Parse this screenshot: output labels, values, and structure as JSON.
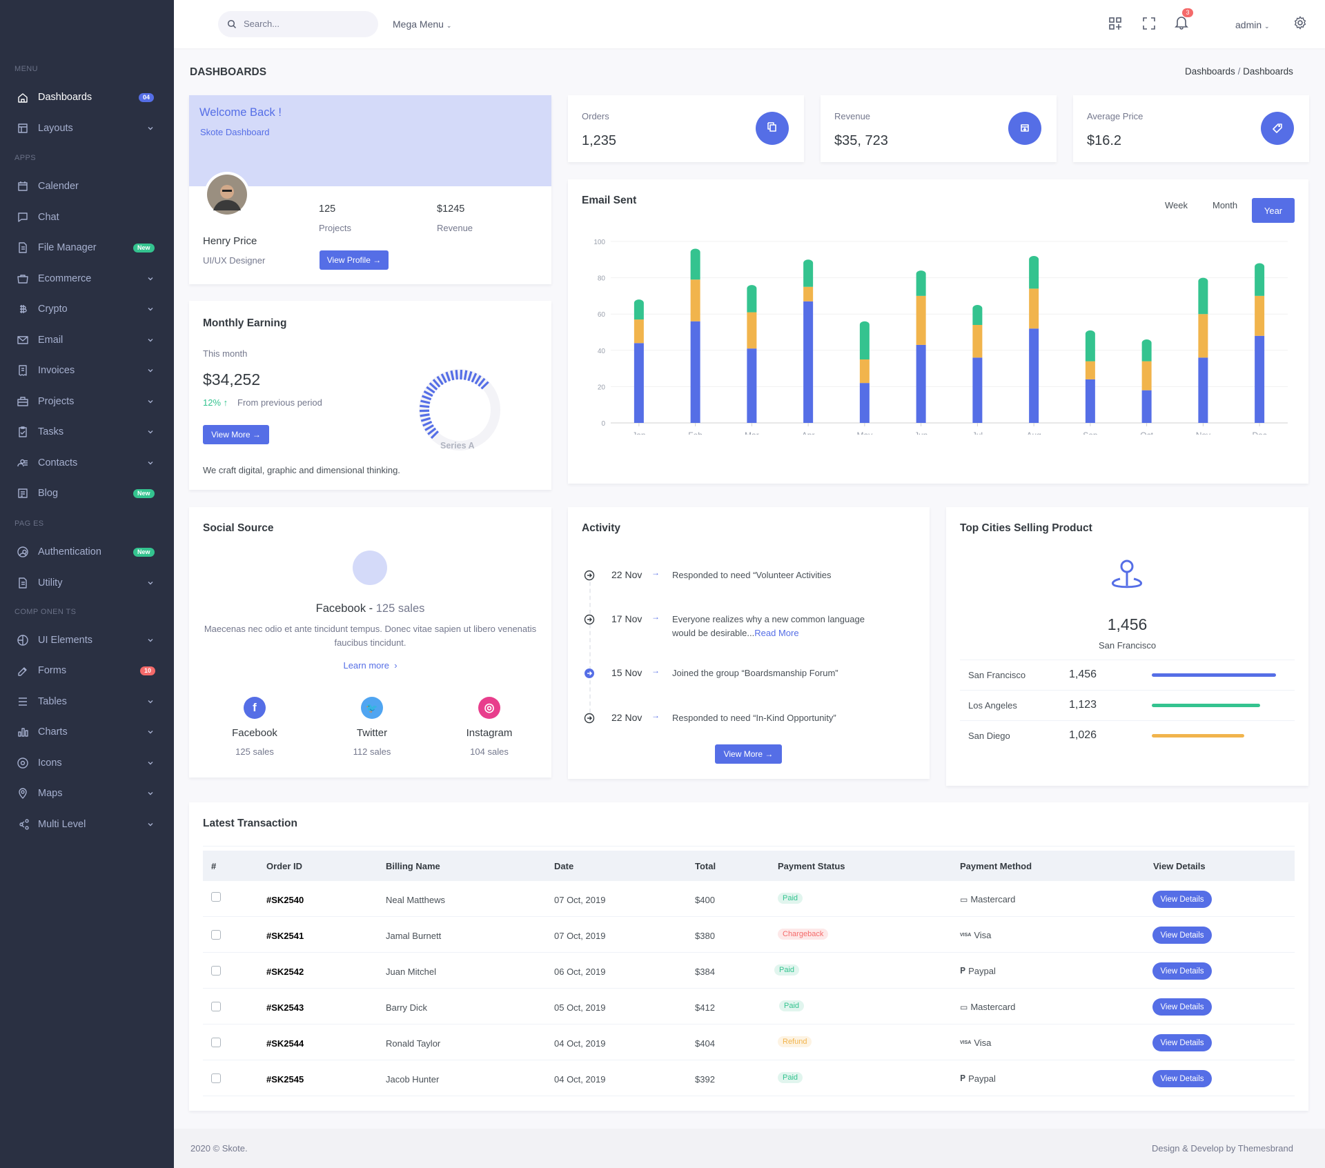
{
  "sidebar": {
    "sections": [
      "MENU",
      "APPS",
      "PAG ES",
      "COMP ONEN TS"
    ],
    "items": [
      {
        "label": "Dashboards",
        "badge": "04"
      },
      {
        "label": "Layouts"
      },
      {
        "label": "Calender"
      },
      {
        "label": "Chat"
      },
      {
        "label": "File Manager",
        "badge": "New"
      },
      {
        "label": "Ecommerce"
      },
      {
        "label": "Crypto"
      },
      {
        "label": "Email"
      },
      {
        "label": "Invoices"
      },
      {
        "label": "Projects"
      },
      {
        "label": "Tasks"
      },
      {
        "label": "Contacts"
      },
      {
        "label": "Blog",
        "badge": "New"
      },
      {
        "label": "Authentication",
        "badge": "New"
      },
      {
        "label": "Utility"
      },
      {
        "label": "UI Elements"
      },
      {
        "label": "Forms",
        "badge": "10"
      },
      {
        "label": "Tables"
      },
      {
        "label": "Charts"
      },
      {
        "label": "Icons"
      },
      {
        "label": "Maps"
      },
      {
        "label": "Multi Level"
      }
    ]
  },
  "topbar": {
    "search_placeholder": "Search...",
    "mega_menu": "Mega Menu",
    "notification_count": "3",
    "user": "admin"
  },
  "page": {
    "title": "DASHBOARDS",
    "breadcrumb": [
      "Dashboards",
      "Dashboards"
    ]
  },
  "welcome": {
    "title": "Welcome Back !",
    "subtitle": "Skote Dashboard",
    "name": "Henry Price",
    "role": "UI/UX Designer",
    "projects_value": "125",
    "projects_label": "Projects",
    "revenue_value": "$1245",
    "revenue_label": "Revenue",
    "button": "View Profile →"
  },
  "stats": [
    {
      "label": "Orders",
      "value": "1,235"
    },
    {
      "label": "Revenue",
      "value": "$35, 723"
    },
    {
      "label": "Average Price",
      "value": "$16.2"
    }
  ],
  "monthly": {
    "title": "Monthly Earning",
    "period": "This month",
    "amount": "$34,252",
    "change": "12% ↑",
    "change_text": "From previous period",
    "button": "View More →",
    "footer": "We craft digital, graphic and dimensional thinking.",
    "gauge_label": "Series A",
    "gauge_percent": 67
  },
  "email_chart": {
    "title": "Email Sent",
    "tabs": [
      "Week",
      "Month",
      "Year"
    ],
    "active_tab": "Year"
  },
  "chart_data": {
    "type": "bar",
    "stacked": true,
    "categories": [
      "Jan",
      "Feb",
      "Mar",
      "Apr",
      "May",
      "Jun",
      "Jul",
      "Aug",
      "Sep",
      "Oct",
      "Nov",
      "Dec"
    ],
    "series": [
      {
        "values": [
          44,
          56,
          41,
          67,
          22,
          43,
          36,
          52,
          24,
          18,
          36,
          48
        ],
        "color": "#556ee6"
      },
      {
        "values": [
          13,
          23,
          20,
          8,
          13,
          27,
          18,
          22,
          10,
          16,
          24,
          22
        ],
        "color": "#f1b44c"
      },
      {
        "values": [
          11,
          17,
          15,
          15,
          21,
          14,
          11,
          18,
          17,
          12,
          20,
          18
        ],
        "color": "#34c38f"
      }
    ],
    "ylim": [
      0,
      100
    ],
    "yticks": [
      "0",
      "20",
      "40",
      "60",
      "80",
      "100"
    ],
    "grid": true
  },
  "social": {
    "title": "Social Source",
    "headline": "Facebook",
    "headline_sales": "125 sales",
    "text": "Maecenas nec odio et ante tincidunt tempus. Donec vitae sapien ut libero venenatis faucibus tincidunt.",
    "link": "Learn more",
    "items": [
      {
        "name": "Facebook",
        "sales": "125 sales",
        "color": "#556ee6"
      },
      {
        "name": "Twitter",
        "sales": "112 sales",
        "color": "#50a5f1"
      },
      {
        "name": "Instagram",
        "sales": "104 sales",
        "color": "#e83e8c"
      }
    ]
  },
  "activity": {
    "title": "Activity",
    "button": "View More →",
    "items": [
      {
        "date": "22 Nov",
        "text": "Responded to need “Volunteer Activities"
      },
      {
        "date": "17 Nov",
        "text": "Everyone realizes why a new common language",
        "text2": "would be desirable...",
        "link": "Read More"
      },
      {
        "date": "15 Nov",
        "text": "Joined the group “Boardsmanship Forum”"
      },
      {
        "date": "22 Nov",
        "text": "Responded to need “In-Kind Opportunity”"
      }
    ]
  },
  "cities": {
    "title": "Top Cities Selling Product",
    "total": "1,456",
    "city": "San Francisco",
    "rows": [
      {
        "city": "San Francisco",
        "value": "1,456",
        "fraction": 0.94,
        "color": "#556ee6"
      },
      {
        "city": "Los Angeles",
        "value": "1,123",
        "fraction": 0.82,
        "color": "#34c38f"
      },
      {
        "city": "San Diego",
        "value": "1,026",
        "fraction": 0.7,
        "color": "#f1b44c"
      }
    ]
  },
  "transactions": {
    "title": "Latest Transaction",
    "columns": [
      "#",
      "Order ID",
      "Billing Name",
      "Date",
      "Total",
      "Payment Status",
      "Payment Method",
      "View Details"
    ],
    "rows": [
      {
        "id": "#SK2540",
        "name": "Neal Matthews",
        "date": "07 Oct, 2019",
        "total": "$400",
        "status": "Paid",
        "status_color": "#34c38f",
        "status_bg": "#e1f5ee",
        "method": "Mastercard",
        "method_icon": "card",
        "details": "View Details"
      },
      {
        "id": "#SK2541",
        "name": "Jamal Burnett",
        "date": "07 Oct, 2019",
        "total": "$380",
        "status": "Chargeback",
        "status_color": "#f46a6a",
        "status_bg": "#fde8e8",
        "method": "Visa",
        "method_icon": "visa",
        "details": "View Details"
      },
      {
        "id": "#SK2542",
        "name": "Juan Mitchel",
        "date": "06 Oct, 2019",
        "total": "$384",
        "status": "Paid",
        "status_color": "#34c38f",
        "status_bg": "#e1f5ee",
        "method": "Paypal",
        "method_icon": "paypal",
        "details": "View Details"
      },
      {
        "id": "#SK2543",
        "name": "Barry Dick",
        "date": "05 Oct, 2019",
        "total": "$412",
        "status": "Paid",
        "status_color": "#34c38f",
        "status_bg": "#e1f5ee",
        "method": "Mastercard",
        "method_icon": "card",
        "details": "View Details"
      },
      {
        "id": "#SK2544",
        "name": "Ronald Taylor",
        "date": "04 Oct, 2019",
        "total": "$404",
        "status": "Refund",
        "status_color": "#f1b44c",
        "status_bg": "#fdf3e3",
        "method": "Visa",
        "method_icon": "visa",
        "details": "View Details"
      },
      {
        "id": "#SK2545",
        "name": "Jacob Hunter",
        "date": "04 Oct, 2019",
        "total": "$392",
        "status": "Paid",
        "status_color": "#34c38f",
        "status_bg": "#e1f5ee",
        "method": "Paypal",
        "method_icon": "paypal",
        "details": "View Details"
      }
    ]
  },
  "footer": {
    "left": "2020 © Skote.",
    "right": "Design & Develop by Themesbrand"
  }
}
